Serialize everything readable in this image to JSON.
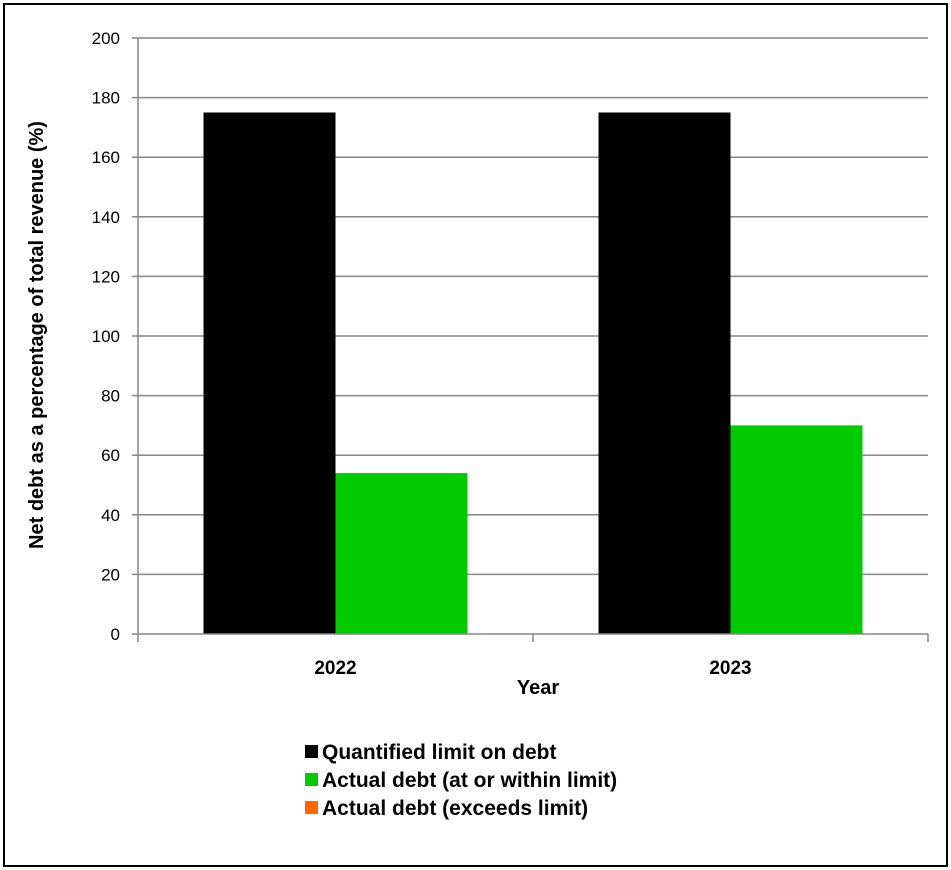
{
  "chart_data": {
    "type": "bar",
    "categories": [
      "2022",
      "2023"
    ],
    "series": [
      {
        "name": "Quantified limit on debt",
        "values": [
          175,
          175
        ],
        "color": "#000000"
      },
      {
        "name": "Actual debt (at or within limit)",
        "values": [
          54,
          70
        ],
        "color": "#00cc00"
      },
      {
        "name": "Actual debt (exceeds limit)",
        "values": [
          null,
          null
        ],
        "color": "#ff6600"
      }
    ],
    "xlabel": "Year",
    "ylabel": "Net debt as a percentage of total revenue (%)",
    "ylim": [
      0,
      200
    ],
    "yticks": [
      "0",
      "20",
      "40",
      "60",
      "80",
      "100",
      "120",
      "140",
      "160",
      "180",
      "200"
    ],
    "grid": true,
    "legend_position": "bottom"
  }
}
